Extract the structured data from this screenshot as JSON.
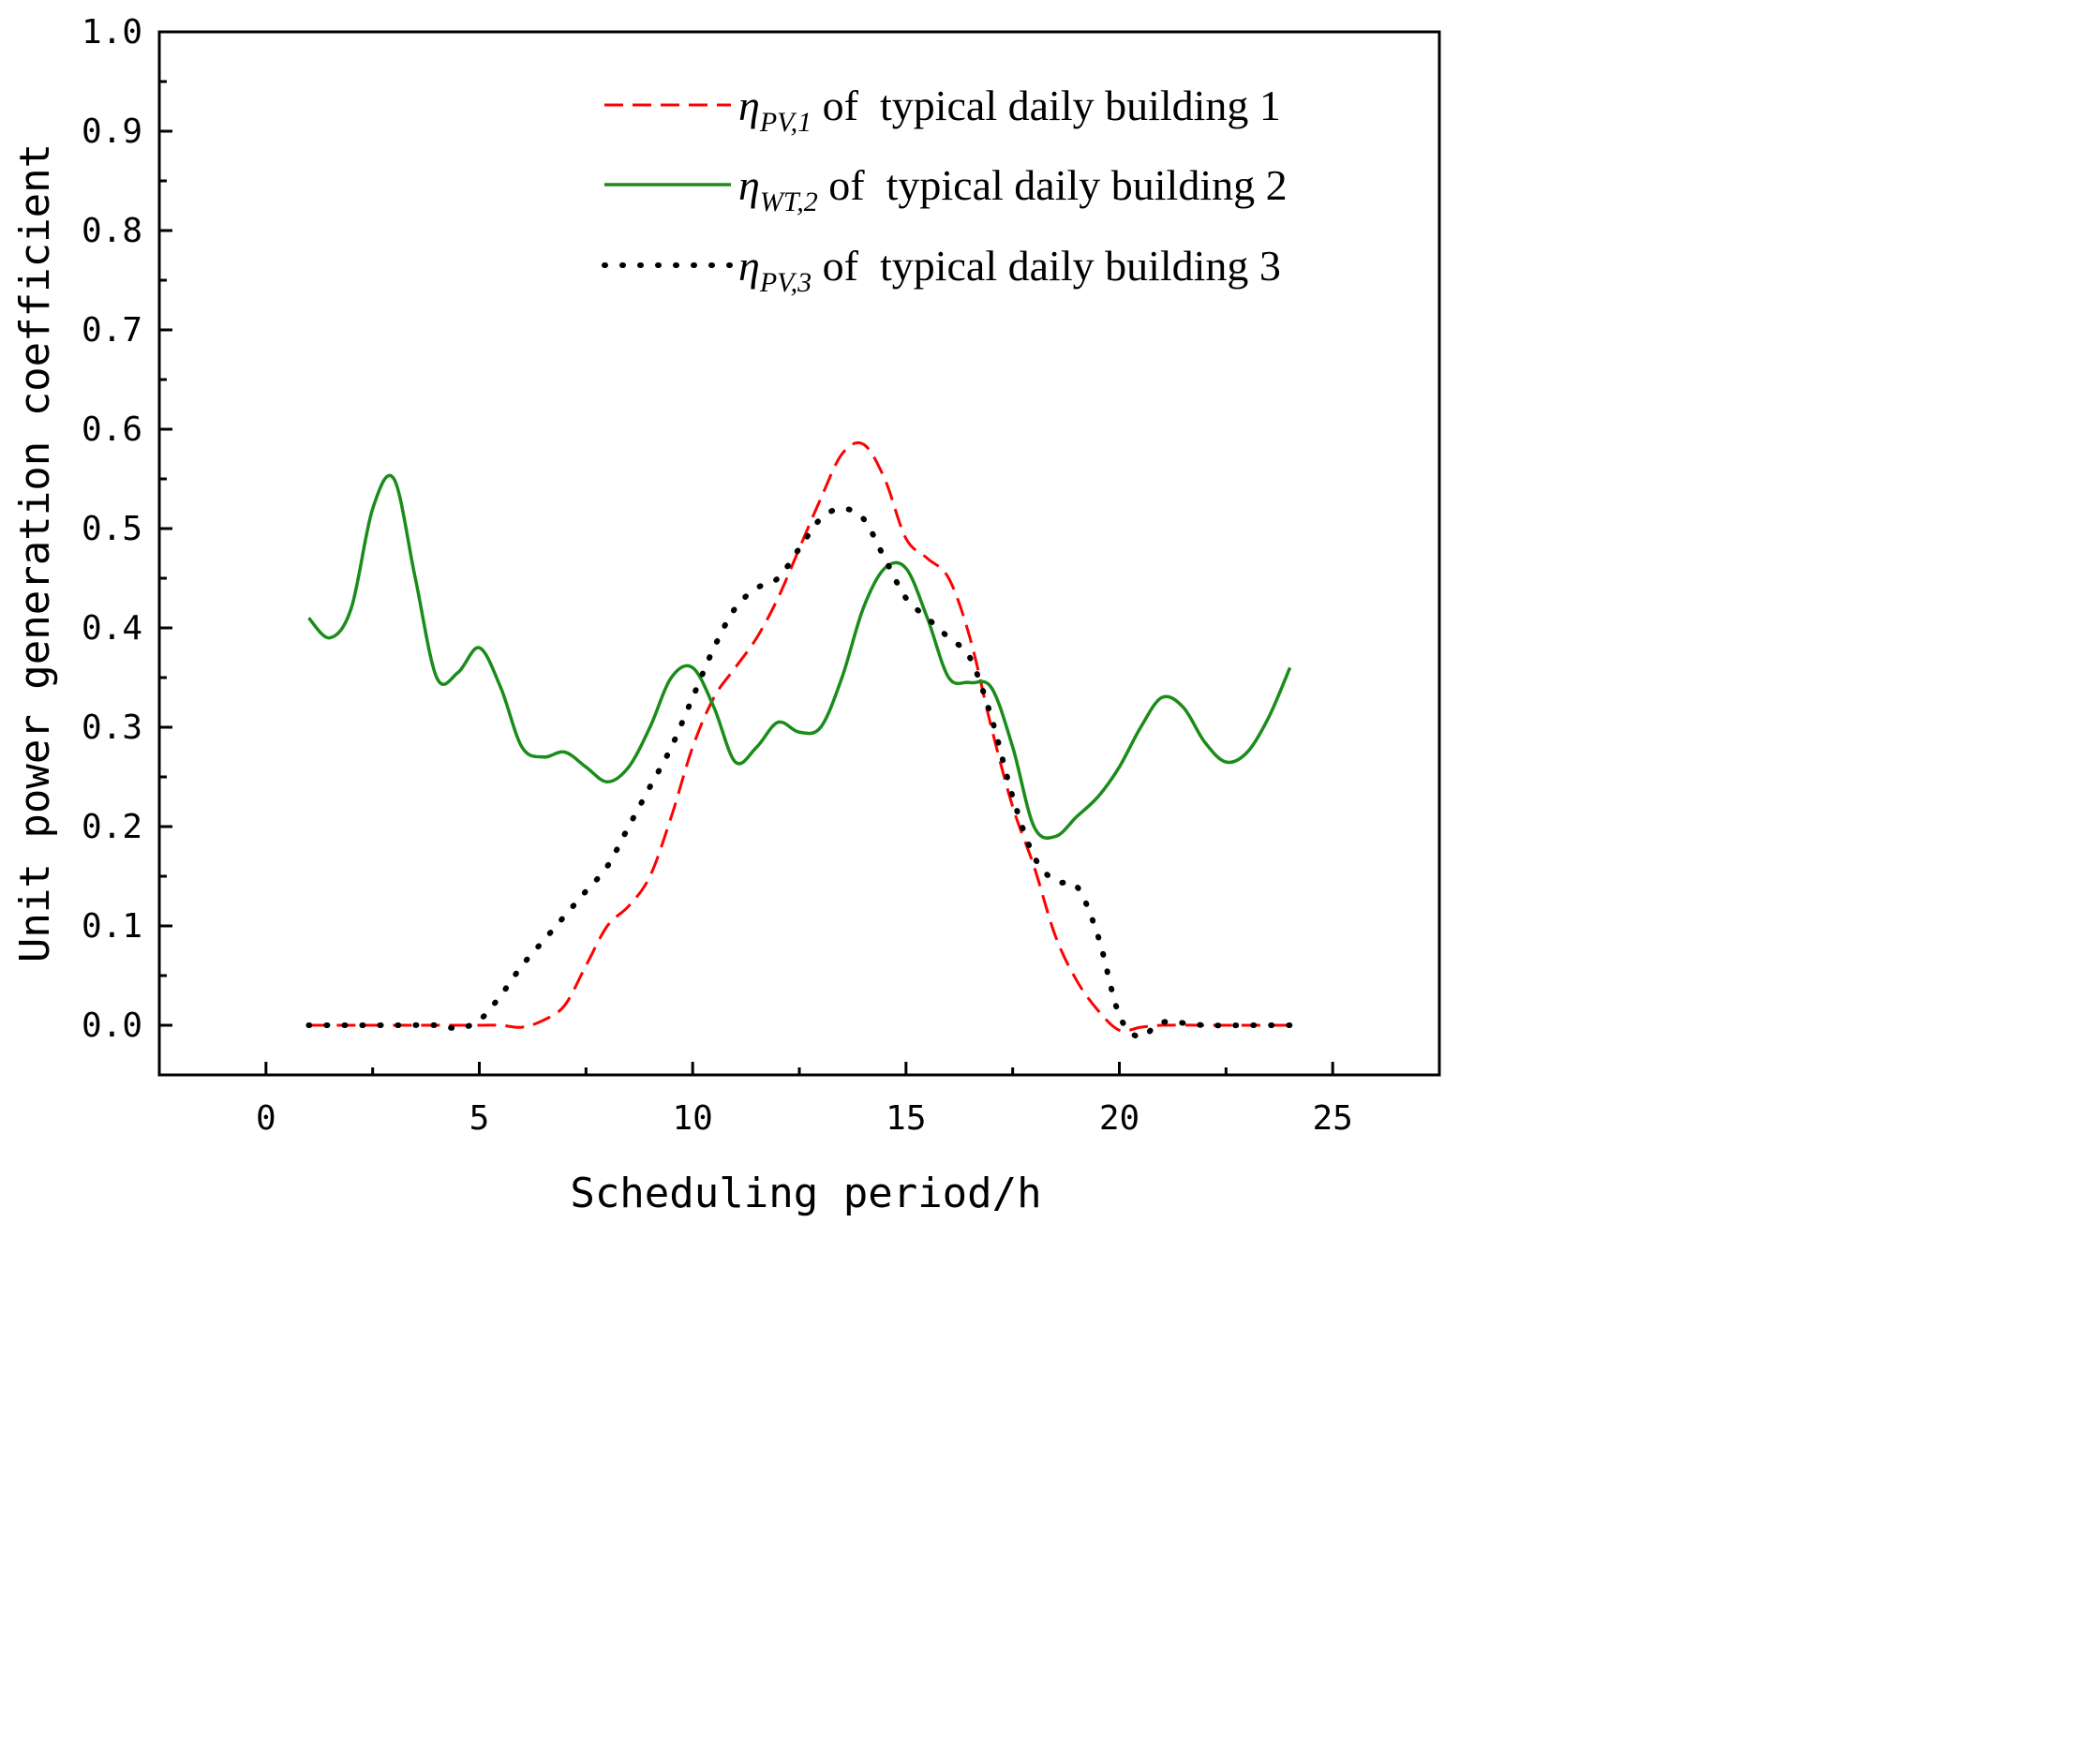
{
  "chart_data": {
    "type": "line",
    "title": "",
    "xlabel": "Scheduling period/h",
    "ylabel": "Unit power generation coefficient",
    "xlim": [
      -2.5,
      27.5
    ],
    "ylim": [
      -0.05,
      1.0
    ],
    "x_ticks": [
      0,
      5,
      10,
      15,
      20,
      25
    ],
    "x_tick_labels": [
      "0",
      "5",
      "10",
      "15",
      "20",
      "25"
    ],
    "y_ticks": [
      0.0,
      0.1,
      0.2,
      0.3,
      0.4,
      0.5,
      0.6,
      0.7,
      0.8,
      0.9,
      1.0
    ],
    "y_tick_labels": [
      "0.0",
      "0.1",
      "0.2",
      "0.3",
      "0.4",
      "0.5",
      "0.6",
      "0.7",
      "0.8",
      "0.9",
      "1.0"
    ],
    "legend_position": "top-right",
    "series": [
      {
        "name": "η_PV,1 of typical daily building 1",
        "legend_symbol": "η",
        "legend_subscript": "PV,1",
        "legend_suffix": " of  typical daily building 1",
        "color": "#ff0000",
        "style": "dashed",
        "x": [
          1,
          2,
          3,
          4,
          5,
          5.5,
          6,
          6.5,
          7,
          7.5,
          8,
          8.5,
          9,
          9.5,
          10,
          10.5,
          11,
          11.5,
          12,
          12.5,
          13,
          13.5,
          14,
          14.5,
          15,
          15.5,
          16,
          16.5,
          17,
          17.5,
          18,
          18.5,
          19,
          19.5,
          20,
          20.5,
          21,
          22,
          23,
          24
        ],
        "y": [
          0.0,
          0.0,
          0.0,
          0.0,
          0.0,
          0.0,
          -0.002,
          0.005,
          0.02,
          0.06,
          0.1,
          0.12,
          0.15,
          0.21,
          0.28,
          0.33,
          0.36,
          0.39,
          0.43,
          0.48,
          0.53,
          0.575,
          0.585,
          0.55,
          0.49,
          0.47,
          0.45,
          0.39,
          0.3,
          0.22,
          0.16,
          0.09,
          0.045,
          0.015,
          -0.005,
          -0.002,
          0.0,
          0.0,
          0.0,
          0.0
        ]
      },
      {
        "name": "η_WT,2 of typical daily building 2",
        "legend_symbol": "η",
        "legend_subscript": "WT,2",
        "legend_suffix": " of  typical daily building 2",
        "color": "#1a8c1a",
        "style": "solid",
        "x": [
          1,
          1.5,
          2,
          2.5,
          3,
          3.5,
          4,
          4.5,
          5,
          5.5,
          6,
          6.5,
          7,
          7.5,
          8,
          8.5,
          9,
          9.5,
          10,
          10.5,
          11,
          11.5,
          12,
          12.5,
          13,
          13.5,
          14,
          14.5,
          15,
          15.5,
          16,
          16.5,
          17,
          17.5,
          18,
          18.5,
          19,
          19.5,
          20,
          20.5,
          21,
          21.5,
          22,
          22.5,
          23,
          23.5,
          24
        ],
        "y": [
          0.41,
          0.39,
          0.42,
          0.52,
          0.55,
          0.45,
          0.35,
          0.355,
          0.38,
          0.34,
          0.28,
          0.27,
          0.275,
          0.26,
          0.245,
          0.26,
          0.3,
          0.35,
          0.36,
          0.32,
          0.265,
          0.28,
          0.305,
          0.295,
          0.3,
          0.35,
          0.42,
          0.46,
          0.46,
          0.41,
          0.35,
          0.345,
          0.34,
          0.28,
          0.2,
          0.19,
          0.21,
          0.23,
          0.26,
          0.3,
          0.33,
          0.32,
          0.285,
          0.265,
          0.275,
          0.31,
          0.36
        ]
      },
      {
        "name": "η_PV,3 of typical daily building 3",
        "legend_symbol": "η",
        "legend_subscript": "PV,3",
        "legend_suffix": " of  typical daily building 3",
        "color": "#000000",
        "style": "dotted",
        "x": [
          1,
          2,
          3,
          4,
          4.5,
          5,
          5.5,
          6,
          6.5,
          7,
          7.5,
          8,
          8.5,
          9,
          9.5,
          10,
          10.5,
          11,
          11.5,
          12,
          12.5,
          13,
          13.5,
          14,
          14.5,
          15,
          15.5,
          16,
          16.5,
          17,
          17.5,
          18,
          18.5,
          19,
          19.5,
          20,
          20.5,
          21,
          22,
          23,
          24
        ],
        "y": [
          0.0,
          0.0,
          0.0,
          0.0,
          -0.003,
          0.005,
          0.03,
          0.06,
          0.085,
          0.11,
          0.135,
          0.16,
          0.2,
          0.24,
          0.28,
          0.33,
          0.38,
          0.42,
          0.44,
          0.45,
          0.48,
          0.51,
          0.52,
          0.51,
          0.47,
          0.43,
          0.41,
          0.39,
          0.37,
          0.31,
          0.23,
          0.17,
          0.145,
          0.14,
          0.09,
          0.01,
          -0.012,
          0.003,
          0.0,
          0.0,
          0.0
        ]
      }
    ]
  }
}
